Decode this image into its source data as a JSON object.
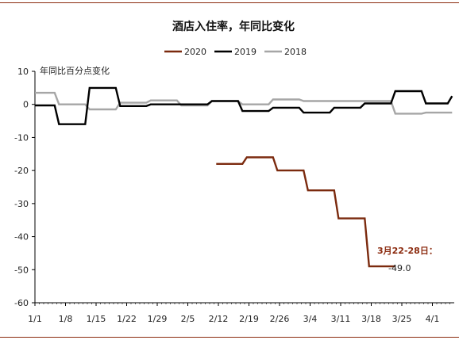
{
  "chart_data": {
    "type": "line",
    "title": "酒店入住率，年同比变化",
    "ylabel": "年同比百分点变化",
    "xlabel": "",
    "ylim": [
      -60,
      10
    ],
    "yticks": [
      10,
      0,
      -10,
      -20,
      -30,
      -40,
      -50,
      -60
    ],
    "x_tick_labels": [
      "1/1",
      "1/8",
      "1/15",
      "1/22",
      "1/29",
      "2/5",
      "2/12",
      "2/19",
      "2/26",
      "3/4",
      "3/11",
      "3/18",
      "3/25",
      "4/1"
    ],
    "legend_position": "top-center",
    "grid": false,
    "series": [
      {
        "name": "2020",
        "color": "#7b2a0e",
        "points": [
          [
            41.5,
            -18
          ],
          [
            47.5,
            -18
          ],
          [
            48.5,
            -16
          ],
          [
            54.5,
            -16
          ],
          [
            55.5,
            -20
          ],
          [
            61.5,
            -20
          ],
          [
            62.5,
            -26
          ],
          [
            68.5,
            -26
          ],
          [
            69.5,
            -34.5
          ],
          [
            75.5,
            -34.5
          ],
          [
            76.5,
            -49
          ],
          [
            82.5,
            -49
          ]
        ]
      },
      {
        "name": "2019",
        "color": "#000000",
        "points": [
          [
            0,
            -0.3
          ],
          [
            4.5,
            -0.3
          ],
          [
            5.5,
            -6
          ],
          [
            11.5,
            -6
          ],
          [
            12.5,
            5
          ],
          [
            18.5,
            5
          ],
          [
            19.5,
            -0.5
          ],
          [
            25.5,
            -0.5
          ],
          [
            26.5,
            0
          ],
          [
            39.5,
            0
          ],
          [
            40.5,
            1
          ],
          [
            46.5,
            1
          ],
          [
            47.5,
            -2
          ],
          [
            53.5,
            -2
          ],
          [
            54.5,
            -1
          ],
          [
            60.5,
            -1
          ],
          [
            61.5,
            -2.5
          ],
          [
            67.5,
            -2.5
          ],
          [
            68.5,
            -1
          ],
          [
            74.5,
            -1
          ],
          [
            75.5,
            0.3
          ],
          [
            81.5,
            0.3
          ],
          [
            82.5,
            4
          ],
          [
            88.5,
            4
          ],
          [
            89.5,
            0.3
          ],
          [
            94.5,
            0.3
          ],
          [
            95.5,
            2.5
          ]
        ]
      },
      {
        "name": "2018",
        "color": "#a6a6a6",
        "points": [
          [
            0,
            3.5
          ],
          [
            4.5,
            3.5
          ],
          [
            5.5,
            0
          ],
          [
            11.5,
            0
          ],
          [
            12.5,
            -1.5
          ],
          [
            18.5,
            -1.5
          ],
          [
            19.5,
            0.5
          ],
          [
            25.5,
            0.5
          ],
          [
            26.5,
            1.2
          ],
          [
            32.5,
            1.2
          ],
          [
            33.5,
            -0.3
          ],
          [
            39.5,
            -0.3
          ],
          [
            40.5,
            1
          ],
          [
            46.5,
            1
          ],
          [
            47.5,
            0
          ],
          [
            53.5,
            0
          ],
          [
            54.5,
            1.5
          ],
          [
            60.5,
            1.5
          ],
          [
            61.5,
            1
          ],
          [
            81.5,
            1
          ],
          [
            82.5,
            -2.8
          ],
          [
            88.5,
            -2.8
          ],
          [
            89.5,
            -2.5
          ],
          [
            95.5,
            -2.5
          ]
        ]
      }
    ],
    "annotation": {
      "label": "3月22-28日：",
      "value": "-49.0",
      "label_color": "#8b2a0e"
    }
  }
}
